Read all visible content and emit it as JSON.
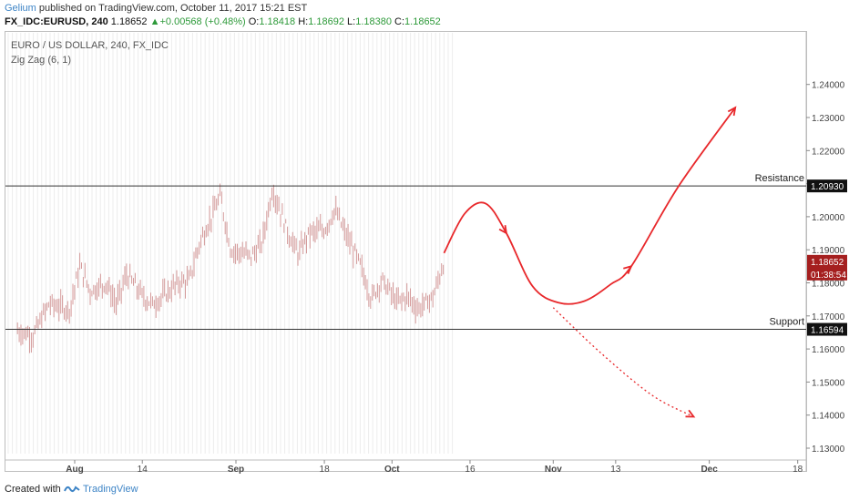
{
  "header": {
    "author": "Gelium",
    "published_text": "published on TradingView.com, October 11, 2017 15:21 EST",
    "symbol": "FX_IDC:EURUSD, 240",
    "last": "1.18652",
    "change_arrow": "▲",
    "change": "+0.00568 (+0.48%)",
    "o_label": "O:",
    "o": "1.18418",
    "h_label": "H:",
    "h": "1.18692",
    "l_label": "L:",
    "l": "1.18380",
    "c_label": "C:",
    "c": "1.18652"
  },
  "legend": {
    "title": "EURO / US DOLLAR, 240, FX_IDC",
    "indicator": "Zig Zag (6, 1)"
  },
  "chart_data": {
    "type": "candlestick",
    "yticks": [
      "1.13000",
      "1.14000",
      "1.15000",
      "1.16000",
      "1.17000",
      "1.18000",
      "1.19000",
      "1.20000",
      "1.21000",
      "1.22000",
      "1.23000",
      "1.24000"
    ],
    "ytick_values": [
      1.13,
      1.14,
      1.15,
      1.16,
      1.17,
      1.18,
      1.19,
      1.2,
      1.21,
      1.22,
      1.23,
      1.24
    ],
    "ylim": [
      1.126,
      1.244
    ],
    "xticks": [
      "Aug",
      "14",
      "Sep",
      "18",
      "Oct",
      "16",
      "Nov",
      "13",
      "Dec",
      "18"
    ],
    "xtick_dates": [
      "2017-08-01",
      "2017-08-14",
      "2017-09-01",
      "2017-09-18",
      "2017-10-01",
      "2017-10-16",
      "2017-11-01",
      "2017-11-13",
      "2017-12-01",
      "2017-12-18"
    ],
    "price_path": [
      [
        "2017-07-21",
        1.1655
      ],
      [
        "2017-07-24",
        1.164
      ],
      [
        "2017-07-27",
        1.1735
      ],
      [
        "2017-07-31",
        1.172
      ],
      [
        "2017-08-02",
        1.185
      ],
      [
        "2017-08-04",
        1.1775
      ],
      [
        "2017-08-07",
        1.18
      ],
      [
        "2017-08-09",
        1.1735
      ],
      [
        "2017-08-11",
        1.1825
      ],
      [
        "2017-08-14",
        1.176
      ],
      [
        "2017-08-16",
        1.1735
      ],
      [
        "2017-08-18",
        1.176
      ],
      [
        "2017-08-21",
        1.18
      ],
      [
        "2017-08-23",
        1.1805
      ],
      [
        "2017-08-25",
        1.192
      ],
      [
        "2017-08-29",
        1.206
      ],
      [
        "2017-08-31",
        1.19
      ],
      [
        "2017-09-04",
        1.188
      ],
      [
        "2017-09-06",
        1.192
      ],
      [
        "2017-09-08",
        1.2085
      ],
      [
        "2017-09-11",
        1.195
      ],
      [
        "2017-09-13",
        1.1885
      ],
      [
        "2017-09-15",
        1.195
      ],
      [
        "2017-09-18",
        1.196
      ],
      [
        "2017-09-20",
        1.202
      ],
      [
        "2017-09-22",
        1.195
      ],
      [
        "2017-09-25",
        1.185
      ],
      [
        "2017-09-27",
        1.175
      ],
      [
        "2017-09-29",
        1.181
      ],
      [
        "2017-10-02",
        1.174
      ],
      [
        "2017-10-04",
        1.176
      ],
      [
        "2017-10-06",
        1.172
      ],
      [
        "2017-10-09",
        1.176
      ],
      [
        "2017-10-11",
        1.1865
      ]
    ],
    "candle_color": "#d49a9a",
    "current_price": "1.18652",
    "countdown": "01:38:54",
    "levels": [
      {
        "name": "Resistance",
        "value": 1.2093,
        "price_label": "1.20930"
      },
      {
        "name": "Support",
        "value": 1.16594,
        "price_label": "1.16594"
      }
    ],
    "projection": [
      [
        "2017-10-11",
        1.189
      ],
      [
        "2017-10-15",
        1.201
      ],
      [
        "2017-10-19",
        1.204
      ],
      [
        "2017-10-23",
        1.195
      ],
      [
        "2017-10-28",
        1.179
      ],
      [
        "2017-11-02",
        1.174
      ],
      [
        "2017-11-07",
        1.1745
      ],
      [
        "2017-11-12",
        1.1795
      ],
      [
        "2017-11-16",
        1.185
      ],
      [
        "2017-11-25",
        1.209
      ],
      [
        "2017-12-06",
        1.233
      ]
    ],
    "alt_projection": [
      [
        "2017-11-01",
        1.1725
      ],
      [
        "2017-11-10",
        1.159
      ],
      [
        "2017-11-20",
        1.146
      ],
      [
        "2017-11-28",
        1.1395
      ]
    ],
    "projection_color": "#e8282b",
    "grid": true
  },
  "footer": {
    "created_with": "Created with",
    "brand": "TradingView"
  }
}
